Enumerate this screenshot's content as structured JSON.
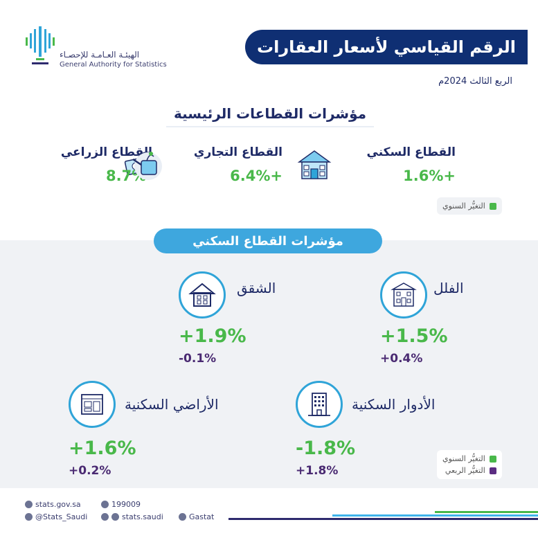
{
  "header": {
    "logo_arabic": "الهيئـة العـامـة للإحصـاء",
    "logo_english": "General Authority for Statistics",
    "title": "الرقم القياسي لأسعار العقارات",
    "period": "الربع الثالث 2024م"
  },
  "main_sectors": {
    "heading": "مؤشرات القطاعات الرئيسية",
    "items": [
      {
        "name": "القطاع السكني",
        "value": "+1.6%",
        "icon": "house-icon"
      },
      {
        "name": "القطاع التجاري",
        "value": "+6.4%",
        "icon": "money-percent-icon"
      },
      {
        "name": "القطاع الزراعي",
        "value": "-8.7%",
        "icon": "watering-can-icon"
      }
    ],
    "legend_annual": "التغيُّر السنوي"
  },
  "residential": {
    "heading": "مؤشرات القطاع السكني",
    "items": [
      {
        "name": "الفلل",
        "annual": "+1.5%",
        "quarterly": "+0.4%",
        "icon": "villa-icon"
      },
      {
        "name": "الشقق",
        "annual": "+1.9%",
        "quarterly": "-0.1%",
        "icon": "apartment-icon"
      },
      {
        "name": "الأدوار السكنية",
        "annual": "-1.8%",
        "quarterly": "+1.8%",
        "icon": "building-icon"
      },
      {
        "name": "الأراضي السكنية",
        "annual": "+1.6%",
        "quarterly": "+0.2%",
        "icon": "land-plan-icon"
      }
    ],
    "legend_annual": "التغيُّر السنوي",
    "legend_quarterly": "التغيُّر الربعي"
  },
  "colors": {
    "annual": "#49b84a",
    "quarterly": "#5b2d82",
    "brand_dark": "#0f2f73",
    "brand_light": "#3fb4ea"
  },
  "footer": {
    "website": "stats.gov.sa",
    "phone": "199009",
    "twitter": "@Stats_Saudi",
    "social": "stats.saudi",
    "linkedin": "Gastat"
  }
}
